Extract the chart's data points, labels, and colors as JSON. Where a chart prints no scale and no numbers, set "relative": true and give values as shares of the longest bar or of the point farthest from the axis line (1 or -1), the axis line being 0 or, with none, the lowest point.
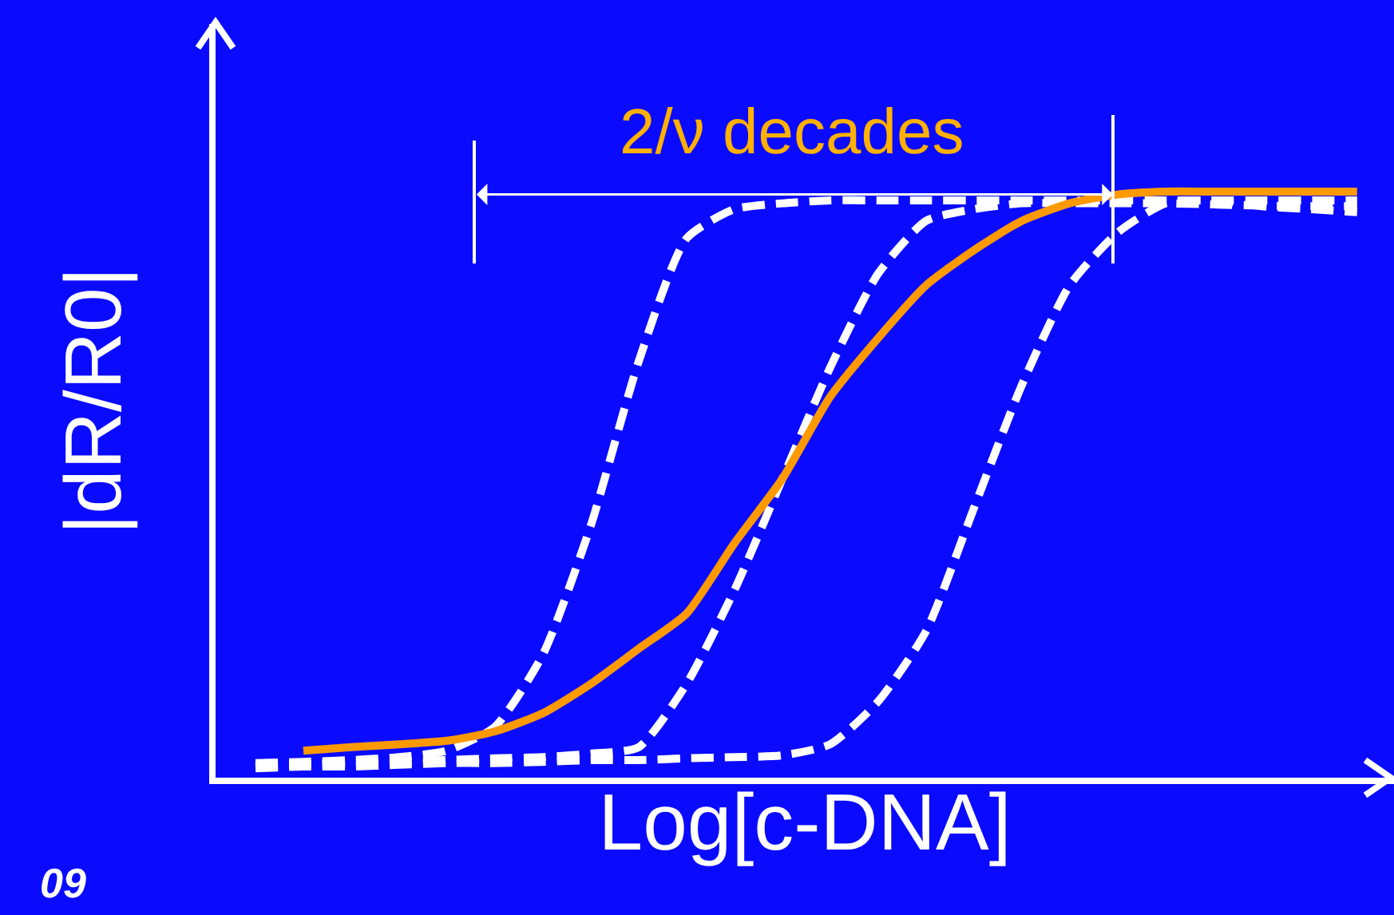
{
  "chart_data": {
    "type": "line",
    "relative": true,
    "xlabel": "Log[c-DNA]",
    "ylabel": "|dR/R0|",
    "categories": [
      null,
      null,
      null,
      null,
      null,
      null,
      null,
      null,
      null,
      null,
      null,
      null,
      null,
      null,
      null,
      null,
      null,
      null,
      null,
      null,
      null,
      null,
      null,
      null
    ],
    "series": [
      {
        "color": "#ffffff",
        "line_style": "dashed",
        "values": [
          0.025,
          0.027,
          0.03,
          0.035,
          0.046,
          0.087,
          0.21,
          0.43,
          0.71,
          0.92,
          0.97,
          0.98,
          0.985,
          0.985,
          0.985,
          0.985,
          0.985,
          0.985,
          0.985,
          0.985,
          0.985,
          0.985,
          0.985,
          0.985
        ]
      },
      {
        "color": "#ffffff",
        "line_style": "dashed",
        "values": [
          0.019,
          0.022,
          0.025,
          0.027,
          0.03,
          0.033,
          0.035,
          0.041,
          0.052,
          0.16,
          0.32,
          0.51,
          0.7,
          0.86,
          0.95,
          0.97,
          0.98,
          0.98,
          0.98,
          0.98,
          0.978,
          0.976,
          0.975,
          0.975
        ]
      },
      {
        "color": "#ffffff",
        "line_style": "dashed",
        "values": [
          0.016,
          0.019,
          0.019,
          0.022,
          0.025,
          0.025,
          0.027,
          0.03,
          0.03,
          0.033,
          0.035,
          0.038,
          0.057,
          0.13,
          0.25,
          0.46,
          0.67,
          0.84,
          0.93,
          0.98,
          0.985,
          0.975,
          0.97,
          0.965
        ]
      },
      {
        "color": "#ff9900",
        "line_style": "solid",
        "values": [
          null,
          0.046,
          0.052,
          0.057,
          0.063,
          0.079,
          0.11,
          0.16,
          0.22,
          0.28,
          0.4,
          0.51,
          0.65,
          0.75,
          0.84,
          0.9,
          0.95,
          0.98,
          0.995,
          1,
          1,
          1,
          1,
          1
        ]
      }
    ],
    "annotations": [
      "2/ν decades",
      "09"
    ],
    "marker": "none",
    "grid": false
  }
}
